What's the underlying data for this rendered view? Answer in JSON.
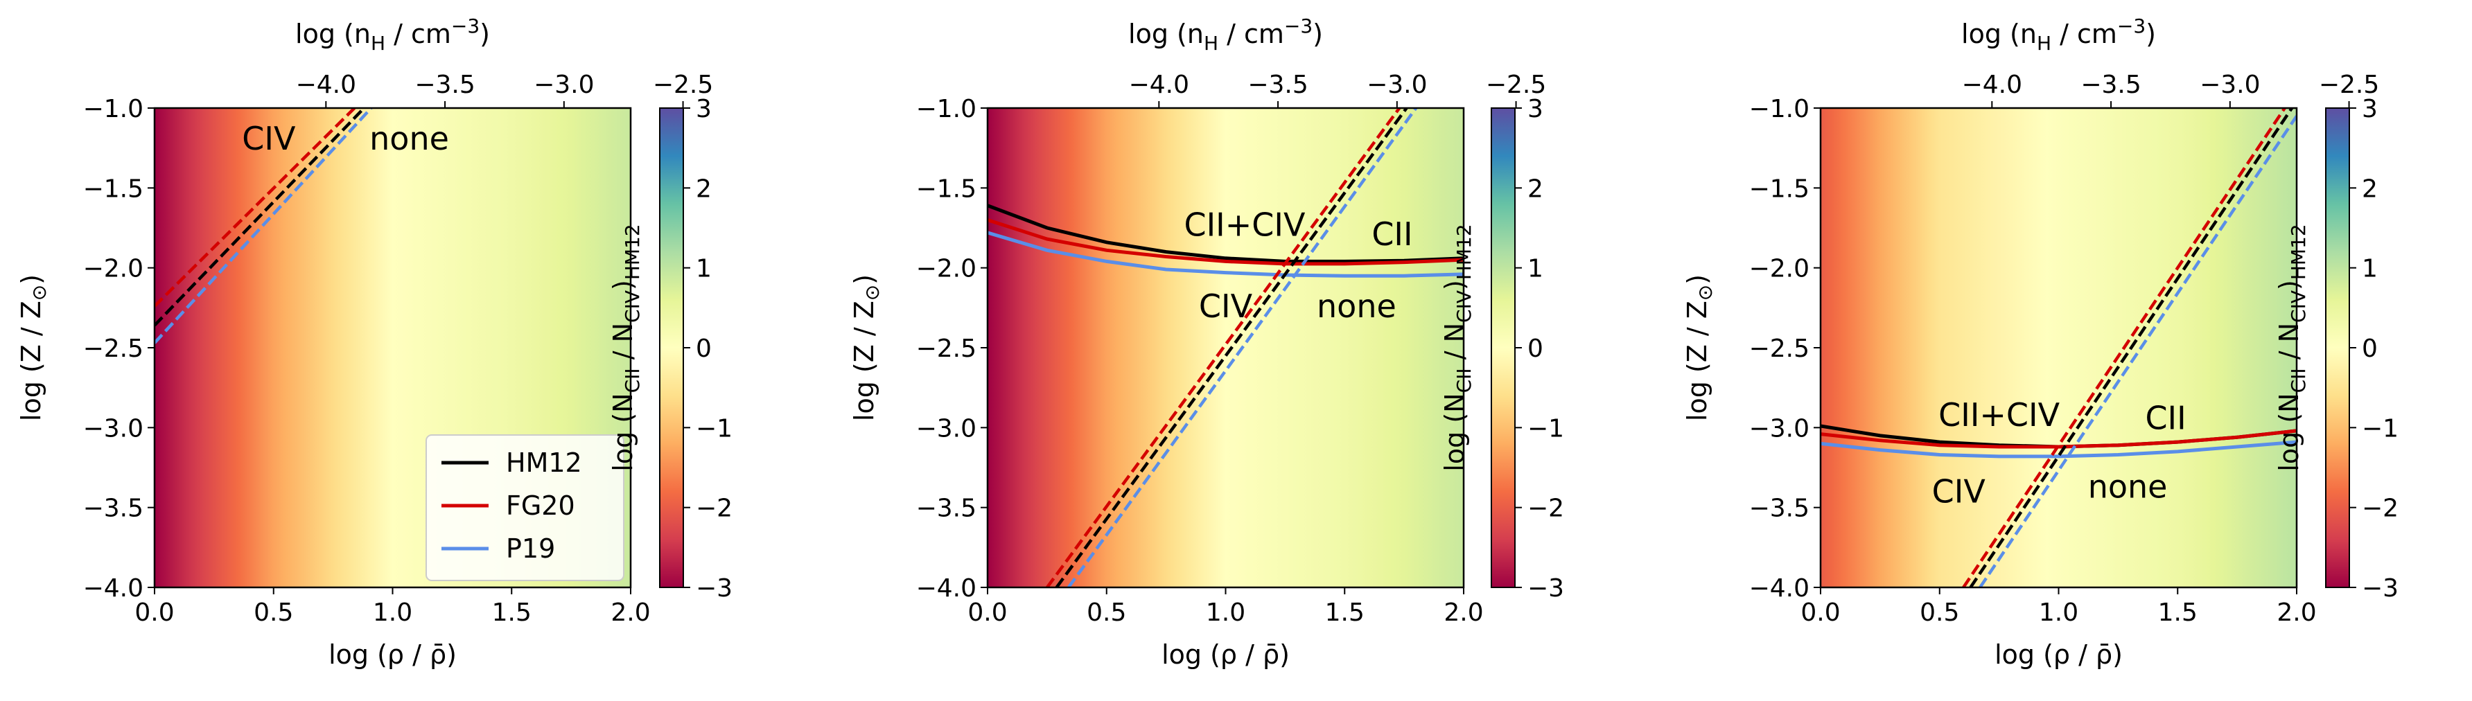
{
  "chart_data": [
    {
      "type": "heatmap",
      "panel": "left",
      "xlabel": "log (ρ / ρ̄)",
      "ylabel": "log (Z / Z⊙)",
      "top_xlabel": "log (nH / cm−3)",
      "colorbar_label": "log (NCII / NCIV)HM12",
      "xlim": [
        0.0,
        2.0
      ],
      "ylim": [
        -4.0,
        -1.0
      ],
      "colorbar_range": [
        -3,
        3
      ],
      "x_ticks": [
        "0.0",
        "0.5",
        "1.0",
        "1.5",
        "2.0"
      ],
      "y_ticks": [
        "−1.0",
        "−1.5",
        "−2.0",
        "−2.5",
        "−3.0",
        "−3.5",
        "−4.0"
      ],
      "top_ticks": [
        {
          "nH": -4.0,
          "label": "−4.0"
        },
        {
          "nH": -3.5,
          "label": "−3.5"
        },
        {
          "nH": -3.0,
          "label": "−3.0"
        },
        {
          "nH": -2.5,
          "label": "−2.5"
        }
      ],
      "colorbar_ticks": [
        "3",
        "2",
        "1",
        "0",
        "−1",
        "−2",
        "−3"
      ],
      "heatmap_profile": {
        "x": [
          0.0,
          0.5,
          1.0,
          1.5,
          2.0
        ],
        "value": [
          -3.0,
          -1.3,
          0.0,
          0.35,
          0.9
        ]
      },
      "series": [
        {
          "name": "HM12",
          "color": "#000000",
          "style": "dashed",
          "x": [
            0.0,
            0.88
          ],
          "y": [
            -2.36,
            -1.0
          ]
        },
        {
          "name": "FG20",
          "color": "#d40000",
          "style": "dashed",
          "x": [
            0.0,
            0.84
          ],
          "y": [
            -2.24,
            -1.0
          ]
        },
        {
          "name": "P19",
          "color": "#5a8ee8",
          "style": "dashed",
          "x": [
            0.0,
            0.91
          ],
          "y": [
            -2.47,
            -1.0
          ]
        }
      ],
      "annotations": [
        {
          "text": "CIV",
          "x": 0.48,
          "y": -1.19
        },
        {
          "text": "none",
          "x": 1.07,
          "y": -1.19
        }
      ],
      "legend": {
        "position": "bottom-right",
        "entries": [
          {
            "name": "HM12",
            "color": "#000000"
          },
          {
            "name": "FG20",
            "color": "#d40000"
          },
          {
            "name": "P19",
            "color": "#5a8ee8"
          }
        ]
      }
    },
    {
      "type": "heatmap",
      "panel": "middle",
      "xlabel": "log (ρ / ρ̄)",
      "ylabel": "log (Z / Z⊙)",
      "top_xlabel": "log (nH / cm−3)",
      "colorbar_label": "log (NCII / NCIV)HM12",
      "xlim": [
        0.0,
        2.0
      ],
      "ylim": [
        -4.0,
        -1.0
      ],
      "colorbar_range": [
        -3,
        3
      ],
      "x_ticks": [
        "0.0",
        "0.5",
        "1.0",
        "1.5",
        "2.0"
      ],
      "y_ticks": [
        "−1.0",
        "−1.5",
        "−2.0",
        "−2.5",
        "−3.0",
        "−3.5",
        "−4.0"
      ],
      "top_ticks": [
        {
          "nH": -4.0,
          "label": "−4.0"
        },
        {
          "nH": -3.5,
          "label": "−3.5"
        },
        {
          "nH": -3.0,
          "label": "−3.0"
        },
        {
          "nH": -2.5,
          "label": "−2.5"
        }
      ],
      "colorbar_ticks": [
        "3",
        "2",
        "1",
        "0",
        "−1",
        "−2",
        "−3"
      ],
      "heatmap_profile": {
        "x": [
          0.0,
          0.5,
          1.0,
          1.5,
          2.0
        ],
        "value": [
          -3.0,
          -1.3,
          0.0,
          0.35,
          0.9
        ]
      },
      "series": [
        {
          "name": "HM12",
          "color": "#000000",
          "style": "dashed",
          "x": [
            0.29,
            1.76
          ],
          "y": [
            -4.0,
            -1.0
          ]
        },
        {
          "name": "FG20",
          "color": "#d40000",
          "style": "dashed",
          "x": [
            0.25,
            1.73
          ],
          "y": [
            -4.0,
            -1.0
          ]
        },
        {
          "name": "P19",
          "color": "#5a8ee8",
          "style": "dashed",
          "x": [
            0.34,
            1.8
          ],
          "y": [
            -4.0,
            -1.0
          ]
        },
        {
          "name": "HM12",
          "color": "#000000",
          "style": "solid",
          "x": [
            0.0,
            0.25,
            0.5,
            0.75,
            1.0,
            1.25,
            1.5,
            1.75,
            2.0
          ],
          "y": [
            -1.61,
            -1.75,
            -1.84,
            -1.9,
            -1.94,
            -1.96,
            -1.96,
            -1.955,
            -1.94
          ]
        },
        {
          "name": "FG20",
          "color": "#d40000",
          "style": "solid",
          "x": [
            0.0,
            0.25,
            0.5,
            0.75,
            1.0,
            1.25,
            1.5,
            1.75,
            2.0
          ],
          "y": [
            -1.7,
            -1.82,
            -1.89,
            -1.93,
            -1.96,
            -1.975,
            -1.975,
            -1.965,
            -1.95
          ]
        },
        {
          "name": "P19",
          "color": "#5a8ee8",
          "style": "solid",
          "x": [
            0.0,
            0.25,
            0.5,
            0.75,
            1.0,
            1.25,
            1.5,
            1.75,
            2.0
          ],
          "y": [
            -1.78,
            -1.89,
            -1.96,
            -2.01,
            -2.03,
            -2.045,
            -2.05,
            -2.05,
            -2.04
          ]
        }
      ],
      "annotations": [
        {
          "text": "CII+CIV",
          "x": 1.08,
          "y": -1.73
        },
        {
          "text": "CII",
          "x": 1.7,
          "y": -1.79
        },
        {
          "text": "CIV",
          "x": 1.0,
          "y": -2.24
        },
        {
          "text": "none",
          "x": 1.55,
          "y": -2.24
        }
      ]
    },
    {
      "type": "heatmap",
      "panel": "right",
      "xlabel": "log (ρ / ρ̄)",
      "ylabel": "log (Z / Z⊙)",
      "top_xlabel": "log (nH / cm−3)",
      "colorbar_label": "log (NCII / NCIV)HM12",
      "xlim": [
        0.0,
        2.0
      ],
      "ylim": [
        -4.0,
        -1.0
      ],
      "colorbar_range": [
        -3,
        3
      ],
      "x_ticks": [
        "0.0",
        "0.5",
        "1.0",
        "1.5",
        "2.0"
      ],
      "y_ticks": [
        "−1.0",
        "−1.5",
        "−2.0",
        "−2.5",
        "−3.0",
        "−3.5",
        "−4.0"
      ],
      "top_ticks": [
        {
          "nH": -4.0,
          "label": "−4.0"
        },
        {
          "nH": -3.5,
          "label": "−3.5"
        },
        {
          "nH": -3.0,
          "label": "−3.0"
        },
        {
          "nH": -2.5,
          "label": "−2.5"
        }
      ],
      "colorbar_ticks": [
        "3",
        "2",
        "1",
        "0",
        "−1",
        "−2",
        "−3"
      ],
      "heatmap_profile": {
        "x": [
          0.0,
          0.5,
          1.0,
          1.5,
          2.0
        ],
        "value": [
          -2.0,
          -0.5,
          0.05,
          0.4,
          1.05
        ]
      },
      "series": [
        {
          "name": "HM12",
          "color": "#000000",
          "style": "dashed",
          "x": [
            0.63,
            1.98
          ],
          "y": [
            -4.0,
            -1.0
          ]
        },
        {
          "name": "FG20",
          "color": "#d40000",
          "style": "dashed",
          "x": [
            0.6,
            1.95
          ],
          "y": [
            -4.0,
            -1.0
          ]
        },
        {
          "name": "P19",
          "color": "#5a8ee8",
          "style": "dashed",
          "x": [
            0.67,
            2.0
          ],
          "y": [
            -4.0,
            -1.05
          ]
        },
        {
          "name": "HM12",
          "color": "#000000",
          "style": "solid",
          "x": [
            0.0,
            0.25,
            0.5,
            0.75,
            1.0,
            1.25,
            1.5,
            1.75,
            2.0
          ],
          "y": [
            -2.99,
            -3.05,
            -3.09,
            -3.11,
            -3.12,
            -3.11,
            -3.09,
            -3.06,
            -3.02
          ]
        },
        {
          "name": "FG20",
          "color": "#d40000",
          "style": "solid",
          "x": [
            0.0,
            0.25,
            0.5,
            0.75,
            1.0,
            1.25,
            1.5,
            1.75,
            2.0
          ],
          "y": [
            -3.04,
            -3.08,
            -3.11,
            -3.12,
            -3.12,
            -3.11,
            -3.09,
            -3.06,
            -3.02
          ]
        },
        {
          "name": "P19",
          "color": "#5a8ee8",
          "style": "solid",
          "x": [
            0.0,
            0.25,
            0.5,
            0.75,
            1.0,
            1.25,
            1.5,
            1.75,
            2.0
          ],
          "y": [
            -3.1,
            -3.14,
            -3.17,
            -3.18,
            -3.18,
            -3.17,
            -3.15,
            -3.12,
            -3.09
          ]
        }
      ],
      "annotations": [
        {
          "text": "CII+CIV",
          "x": 0.75,
          "y": -2.92
        },
        {
          "text": "CII",
          "x": 1.45,
          "y": -2.94
        },
        {
          "text": "CIV",
          "x": 0.58,
          "y": -3.4
        },
        {
          "text": "none",
          "x": 1.29,
          "y": -3.37
        }
      ]
    }
  ]
}
